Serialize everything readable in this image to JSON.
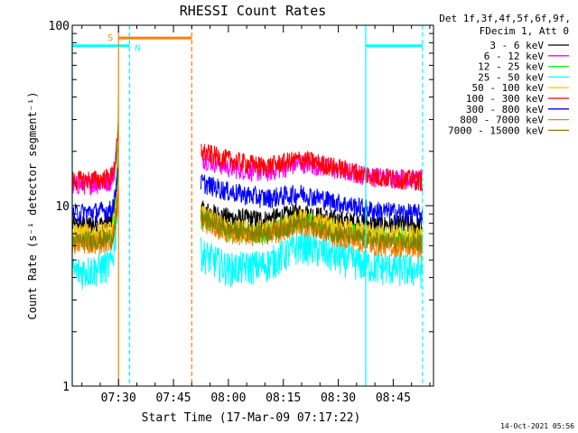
{
  "chart_data": {
    "type": "line",
    "title": "RHESSI Count Rates",
    "xlabel": "Start Time (17-Mar-09 07:17:22)",
    "ylabel": "Count Rate (s⁻¹ detector segment⁻¹)",
    "y_scale": "log",
    "ylim": [
      1,
      100
    ],
    "xlim": [
      "07:17:22",
      "08:56:00"
    ],
    "x_ticks": [
      "07:30",
      "07:45",
      "08:00",
      "08:15",
      "08:30",
      "08:45"
    ],
    "y_ticks": [
      "1",
      "10",
      "100"
    ],
    "legend_header": [
      "Det 1f,3f,4f,5f,6f,9f,",
      "FDecim 1, Att 0"
    ],
    "legend_position": "top-right, outside plot",
    "footer": "14-Oct-2021 05:56",
    "grid": false,
    "data_gap": [
      "07:33:00",
      "07:52:30"
    ],
    "series": [
      {
        "name": "3 - 6 keV",
        "color": "#000000",
        "pre": [
          [
            "07:17:22",
            7.8
          ],
          [
            "07:25",
            7.9
          ],
          [
            "07:28",
            8.1
          ],
          [
            "07:29",
            10
          ],
          [
            "07:29:40",
            14
          ],
          [
            "07:30",
            17
          ]
        ],
        "post": [
          [
            "07:52:30",
            9.5
          ],
          [
            "08:00",
            8.6
          ],
          [
            "08:10",
            8.4
          ],
          [
            "08:20",
            9.2
          ],
          [
            "08:30",
            8.3
          ],
          [
            "08:40",
            7.9
          ],
          [
            "08:53",
            7.8
          ]
        ]
      },
      {
        "name": "6 - 12 keV",
        "color": "#ff00ff",
        "pre": [
          [
            "07:17:22",
            13
          ],
          [
            "07:25",
            13.3
          ],
          [
            "07:28",
            13.8
          ],
          [
            "07:29",
            16
          ],
          [
            "07:29:40",
            22
          ],
          [
            "07:30",
            28
          ]
        ],
        "post": [
          [
            "07:52:30",
            18.5
          ],
          [
            "08:00",
            16.3
          ],
          [
            "08:10",
            15.3
          ],
          [
            "08:20",
            17.3
          ],
          [
            "08:30",
            15.8
          ],
          [
            "08:40",
            14.5
          ],
          [
            "08:53",
            14
          ]
        ]
      },
      {
        "name": "12 - 25 keV",
        "color": "#00ff00",
        "pre": [
          [
            "07:17:22",
            6.5
          ],
          [
            "07:25",
            6.6
          ],
          [
            "07:28",
            6.8
          ],
          [
            "07:29",
            9
          ],
          [
            "07:29:40",
            20
          ],
          [
            "07:30",
            38
          ]
        ],
        "post": [
          [
            "07:52:30",
            8.5
          ],
          [
            "08:00",
            7.2
          ],
          [
            "08:10",
            7
          ],
          [
            "08:20",
            8.3
          ],
          [
            "08:30",
            7.3
          ],
          [
            "08:40",
            6.7
          ],
          [
            "08:53",
            6.6
          ]
        ]
      },
      {
        "name": "25 - 50 keV",
        "color": "#00ffff",
        "pre": [
          [
            "07:17:22",
            4.3
          ],
          [
            "07:25",
            4.5
          ],
          [
            "07:28",
            4.8
          ],
          [
            "07:29",
            6
          ],
          [
            "07:29:40",
            11
          ],
          [
            "07:30",
            18
          ]
        ],
        "post": [
          [
            "07:52:30",
            5.5
          ],
          [
            "08:00",
            4.5
          ],
          [
            "08:10",
            4.7
          ],
          [
            "08:20",
            6.1
          ],
          [
            "08:30",
            5.2
          ],
          [
            "08:40",
            4.6
          ],
          [
            "08:53",
            4.4
          ]
        ]
      },
      {
        "name": "50 - 100 keV",
        "color": "#ffc800",
        "pre": [
          [
            "07:17:22",
            7.1
          ],
          [
            "07:25",
            7.1
          ],
          [
            "07:28",
            7.3
          ],
          [
            "07:29",
            8.5
          ],
          [
            "07:29:40",
            12
          ],
          [
            "07:30",
            16
          ]
        ],
        "post": [
          [
            "07:52:30",
            9
          ],
          [
            "08:00",
            7.6
          ],
          [
            "08:10",
            7.3
          ],
          [
            "08:20",
            8.6
          ],
          [
            "08:30",
            7.6
          ],
          [
            "08:40",
            7
          ],
          [
            "08:53",
            6.9
          ]
        ]
      },
      {
        "name": "100 - 300 keV",
        "color": "#ff0000",
        "pre": [
          [
            "07:17:22",
            13.8
          ],
          [
            "07:25",
            14
          ],
          [
            "07:28",
            14.5
          ],
          [
            "07:29",
            17
          ],
          [
            "07:29:40",
            22
          ],
          [
            "07:30",
            26
          ]
        ],
        "post": [
          [
            "07:52:30",
            20
          ],
          [
            "08:00",
            18
          ],
          [
            "08:10",
            16.5
          ],
          [
            "08:20",
            18.2
          ],
          [
            "08:30",
            16.2
          ],
          [
            "08:40",
            14.5
          ],
          [
            "08:53",
            13.8
          ]
        ]
      },
      {
        "name": "300 - 800 keV",
        "color": "#0000ff",
        "pre": [
          [
            "07:17:22",
            9.1
          ],
          [
            "07:25",
            9.3
          ],
          [
            "07:28",
            9.5
          ],
          [
            "07:29",
            11
          ],
          [
            "07:29:40",
            15
          ],
          [
            "07:30",
            19
          ]
        ],
        "post": [
          [
            "07:52:30",
            13.5
          ],
          [
            "08:00",
            12
          ],
          [
            "08:10",
            11
          ],
          [
            "08:20",
            11.7
          ],
          [
            "08:30",
            10.4
          ],
          [
            "08:40",
            9.4
          ],
          [
            "08:53",
            9
          ]
        ]
      },
      {
        "name": "800 - 7000 keV",
        "color": "#ff8000",
        "pre": [
          [
            "07:17:22",
            6.1
          ],
          [
            "07:25",
            6.2
          ],
          [
            "07:28",
            6.4
          ],
          [
            "07:29",
            7.5
          ],
          [
            "07:29:40",
            10
          ],
          [
            "07:30",
            13
          ]
        ],
        "post": [
          [
            "07:52:30",
            8.2
          ],
          [
            "08:00",
            7
          ],
          [
            "08:10",
            6.8
          ],
          [
            "08:20",
            7.8
          ],
          [
            "08:30",
            6.7
          ],
          [
            "08:40",
            6
          ],
          [
            "08:53",
            5.8
          ]
        ]
      },
      {
        "name": "7000 - 15000 keV",
        "color": "#808000",
        "pre": [
          [
            "07:17:22",
            6.4
          ],
          [
            "07:25",
            6.5
          ],
          [
            "07:28",
            6.6
          ],
          [
            "07:29",
            7.5
          ],
          [
            "07:29:40",
            10
          ],
          [
            "07:30",
            12
          ]
        ],
        "post": [
          [
            "07:52:30",
            8.6
          ],
          [
            "08:00",
            7.4
          ],
          [
            "08:10",
            7.1
          ],
          [
            "08:20",
            8.1
          ],
          [
            "08:30",
            7
          ],
          [
            "08:40",
            6.4
          ],
          [
            "08:53",
            6.2
          ]
        ]
      }
    ],
    "markers": [
      {
        "type": "attenuator-bar",
        "label": "S",
        "color": "#ff8000",
        "start": "07:30:00",
        "end": "07:50:00",
        "level": 85
      },
      {
        "type": "attenuator-bar",
        "label": "N",
        "color": "#00ffff",
        "start": "07:17:22",
        "end": "07:33:00",
        "level": 77
      },
      {
        "type": "attenuator-bar",
        "label": "",
        "color": "#00ffff",
        "start": "08:37:30",
        "end": "08:53:00",
        "level": 77
      },
      {
        "type": "vline",
        "color": "#ff8000",
        "time": "07:30:00",
        "style": "solid"
      },
      {
        "type": "vline",
        "color": "#ff8000",
        "time": "07:50:00",
        "style": "dashed"
      },
      {
        "type": "vline",
        "color": "#00ffff",
        "time": "07:17:22",
        "style": "solid"
      },
      {
        "type": "vline",
        "color": "#00ffff",
        "time": "07:33:00",
        "style": "dashed"
      },
      {
        "type": "vline",
        "color": "#00ffff",
        "time": "08:37:30",
        "style": "solid"
      },
      {
        "type": "vline",
        "color": "#00ffff",
        "time": "08:53:00",
        "style": "dashed"
      }
    ]
  }
}
